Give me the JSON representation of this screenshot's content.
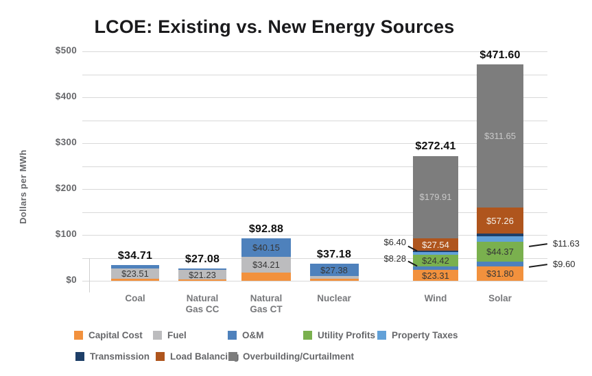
{
  "title": "LCOE: Existing vs. New Energy Sources",
  "chart_data": {
    "type": "bar",
    "stacked": true,
    "title": "LCOE: Existing vs. New Energy Sources",
    "xlabel": "",
    "ylabel": "Dollars per MWh",
    "ylim": [
      0,
      500
    ],
    "gridline_interval": 50,
    "grid": true,
    "legend_position": "bottom",
    "y_ticks": [
      {
        "v": 0,
        "label": "$0"
      },
      {
        "v": 100,
        "label": "$100"
      },
      {
        "v": 200,
        "label": "$200"
      },
      {
        "v": 300,
        "label": "$300"
      },
      {
        "v": 400,
        "label": "$400"
      },
      {
        "v": 500,
        "label": "$500"
      }
    ],
    "segment_colors": {
      "Capital Cost": "#F2913D",
      "Fuel": "#BCBCBE",
      "O&M": "#4E81BC",
      "Utility Profits": "#7AB04E",
      "Property Taxes": "#62A1D8",
      "Transmission": "#1E3F68",
      "Load Balancing": "#AF551D",
      "Overbuilding/Curtailment": "#7D7D7D"
    },
    "label_colors": {
      "default": "#363636",
      "Load Balancing": "#f6f1ea",
      "Overbuilding/Curtailment": "#c9c9c9"
    },
    "categories": [
      "Coal",
      "Natural Gas CC",
      "Natural Gas CT",
      "Nuclear",
      "Wind",
      "Solar"
    ],
    "bars": [
      {
        "category": "Coal",
        "display": "Coal",
        "total": 34.71,
        "total_label": "$34.71",
        "segments": [
          {
            "name": "Capital Cost",
            "value": 4.0,
            "estimated": true
          },
          {
            "name": "Fuel",
            "value": 23.51,
            "label": "$23.51"
          },
          {
            "name": "O&M",
            "value": 7.2,
            "estimated": true
          }
        ]
      },
      {
        "category": "Natural Gas CC",
        "display": "Natural\nGas CC",
        "total": 27.08,
        "total_label": "$27.08",
        "segments": [
          {
            "name": "Capital Cost",
            "value": 2.6,
            "estimated": true
          },
          {
            "name": "Fuel",
            "value": 21.23,
            "label": "$21.23"
          },
          {
            "name": "O&M",
            "value": 3.25,
            "estimated": true
          }
        ]
      },
      {
        "category": "Natural Gas CT",
        "display": "Natural\nGas CT",
        "total": 92.88,
        "total_label": "$92.88",
        "segments": [
          {
            "name": "Capital Cost",
            "value": 18.52,
            "estimated": true
          },
          {
            "name": "Fuel",
            "value": 34.21,
            "label": "$34.21"
          },
          {
            "name": "O&M",
            "value": 40.15,
            "label": "$40.15"
          }
        ]
      },
      {
        "category": "Nuclear",
        "display": "Nuclear",
        "total": 37.18,
        "total_label": "$37.18",
        "segments": [
          {
            "name": "Capital Cost",
            "value": 4.5,
            "estimated": true
          },
          {
            "name": "Fuel",
            "value": 5.3,
            "estimated": true
          },
          {
            "name": "O&M",
            "value": 27.38,
            "label": "$27.38"
          }
        ]
      },
      {
        "category": "Wind",
        "display": "Wind",
        "total": 272.41,
        "total_label": "$272.41",
        "segments": [
          {
            "name": "Capital Cost",
            "value": 23.31,
            "label": "$23.31"
          },
          {
            "name": "O&M",
            "value": 8.28
          },
          {
            "name": "Utility Profits",
            "value": 24.42,
            "label": "$24.42"
          },
          {
            "name": "Property Taxes",
            "value": 6.4
          },
          {
            "name": "Transmission",
            "value": 2.55,
            "estimated": true
          },
          {
            "name": "Load Balancing",
            "value": 27.54,
            "label": "$27.54"
          },
          {
            "name": "Overbuilding/Curtailment",
            "value": 179.91,
            "label": "$179.91"
          }
        ]
      },
      {
        "category": "Solar",
        "display": "Solar",
        "total": 471.6,
        "total_label": "$471.60",
        "segments": [
          {
            "name": "Capital Cost",
            "value": 31.8,
            "label": "$31.80"
          },
          {
            "name": "O&M",
            "value": 9.6
          },
          {
            "name": "Utility Profits",
            "value": 44.37,
            "label": "$44.37"
          },
          {
            "name": "Property Taxes",
            "value": 11.63
          },
          {
            "name": "Transmission",
            "value": 5.29,
            "estimated": true
          },
          {
            "name": "Load Balancing",
            "value": 57.26,
            "label": "$57.26"
          },
          {
            "name": "Overbuilding/Curtailment",
            "value": 311.65,
            "label": "$311.65"
          }
        ]
      }
    ],
    "callouts": [
      {
        "text": "$6.40",
        "bar": "Wind",
        "segment": "Property Taxes",
        "side": "left"
      },
      {
        "text": "$8.28",
        "bar": "Wind",
        "segment": "O&M",
        "side": "left"
      },
      {
        "text": "$11.63",
        "bar": "Solar",
        "segment": "Property Taxes",
        "side": "right"
      },
      {
        "text": "$9.60",
        "bar": "Solar",
        "segment": "O&M",
        "side": "right"
      }
    ],
    "legend_rows": [
      [
        "Capital Cost",
        "Fuel",
        "O&M",
        "Utility Profits",
        "Property Taxes"
      ],
      [
        "Transmission",
        "Load Balancing",
        "Overbuilding/Curtailment"
      ]
    ]
  }
}
